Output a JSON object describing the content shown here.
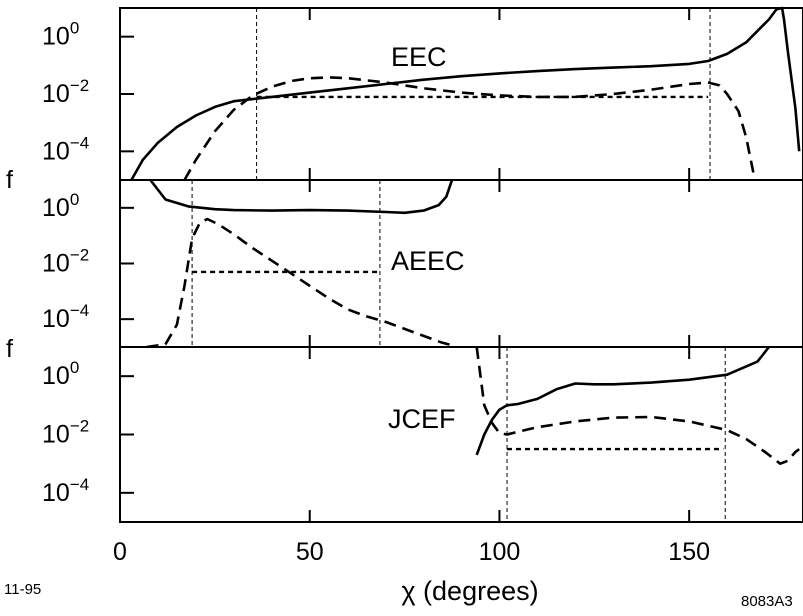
{
  "chart_data": {
    "type": "line",
    "x_axis": {
      "label": "χ (degrees)",
      "range": [
        0,
        180
      ],
      "ticks": [
        0,
        50,
        100,
        150
      ]
    },
    "y_axis": {
      "label": "f",
      "scale": "log",
      "range_log10": [
        -5,
        1
      ],
      "tick_exponents": [
        0,
        -2,
        -4
      ],
      "tick_base": "10"
    },
    "notes": {
      "left": "11-95",
      "right": "8083A3"
    },
    "panels": [
      {
        "name": "EEC",
        "label": "EEC",
        "series": [
          {
            "style": "solid",
            "x": [
              3,
              6,
              10,
              15,
              20,
              25,
              30,
              40,
              50,
              60,
              70,
              80,
              90,
              100,
              110,
              120,
              130,
              140,
              150,
              155,
              160,
              165,
              168,
              171,
              173,
              174.5,
              175,
              176,
              178,
              179
            ],
            "log10": [
              -5,
              -4.3,
              -3.7,
              -3.15,
              -2.75,
              -2.45,
              -2.25,
              -2.1,
              -1.95,
              -1.8,
              -1.65,
              -1.5,
              -1.38,
              -1.28,
              -1.2,
              -1.13,
              -1.08,
              -1.03,
              -0.95,
              -0.85,
              -0.6,
              -0.2,
              0.2,
              0.6,
              0.95,
              1,
              0.6,
              -0.5,
              -2.5,
              -4
            ]
          },
          {
            "style": "dashed",
            "x": [
              17,
              20,
              25,
              30,
              35,
              40,
              45,
              50,
              55,
              60,
              70,
              80,
              90,
              100,
              110,
              120,
              130,
              140,
              150,
              155,
              158,
              160,
              163,
              165,
              167
            ],
            "log10": [
              -5,
              -4.3,
              -3.3,
              -2.55,
              -2.05,
              -1.75,
              -1.55,
              -1.45,
              -1.42,
              -1.45,
              -1.6,
              -1.8,
              -1.95,
              -2.05,
              -2.1,
              -2.1,
              -2.0,
              -1.85,
              -1.65,
              -1.6,
              -1.7,
              -2.0,
              -2.6,
              -3.5,
              -4.8
            ]
          },
          {
            "style": "dotted",
            "x": [
              36,
              155
            ],
            "log10": [
              -2.1,
              -2.1
            ]
          }
        ],
        "vlines": [
          36,
          155.5
        ]
      },
      {
        "name": "AEEC",
        "label": "AEEC",
        "series": [
          {
            "style": "solid",
            "x": [
              8,
              12,
              18,
              25,
              30,
              40,
              50,
              60,
              70,
              75,
              80,
              84,
              86,
              87,
              87.5
            ],
            "log10": [
              1,
              0.3,
              0.05,
              -0.05,
              -0.08,
              -0.1,
              -0.08,
              -0.1,
              -0.15,
              -0.18,
              -0.1,
              0.1,
              0.4,
              0.8,
              1
            ]
          },
          {
            "style": "dashed",
            "x": [
              7,
              12,
              15,
              17,
              19,
              21,
              23,
              26,
              30,
              35,
              40,
              45,
              50,
              55,
              60,
              65,
              70,
              75,
              80,
              85,
              87
            ],
            "log10": [
              -5,
              -4.9,
              -4.2,
              -2.8,
              -1.1,
              -0.55,
              -0.4,
              -0.6,
              -0.95,
              -1.45,
              -1.9,
              -2.35,
              -2.8,
              -3.25,
              -3.65,
              -3.9,
              -4.1,
              -4.35,
              -4.6,
              -4.85,
              -4.92
            ]
          },
          {
            "style": "dotted",
            "x": [
              19,
              68
            ],
            "log10": [
              -2.3,
              -2.3
            ]
          }
        ],
        "vlines": [
          19,
          68.5
        ]
      },
      {
        "name": "JCEF",
        "label": "JCEF",
        "series": [
          {
            "style": "solid",
            "x": [
              94,
              96,
              98,
              100,
              102,
              105,
              110,
              115,
              120,
              125,
              130,
              140,
              150,
              160,
              168,
              171
            ],
            "log10": [
              -2.7,
              -2.0,
              -1.5,
              -1.15,
              -1.0,
              -0.95,
              -0.78,
              -0.45,
              -0.25,
              -0.28,
              -0.28,
              -0.22,
              -0.12,
              0.05,
              0.5,
              1
            ]
          },
          {
            "style": "dashed",
            "x": [
              94,
              95,
              96,
              98,
              100,
              102,
              105,
              110,
              120,
              130,
              140,
              150,
              160,
              165,
              170,
              174,
              176,
              178,
              179
            ],
            "log10": [
              1,
              0,
              -1.0,
              -1.6,
              -1.95,
              -2.0,
              -1.9,
              -1.75,
              -1.55,
              -1.42,
              -1.4,
              -1.55,
              -1.85,
              -2.15,
              -2.6,
              -3.0,
              -2.9,
              -2.6,
              -2.5
            ]
          },
          {
            "style": "dotted",
            "x": [
              102,
              159
            ],
            "log10": [
              -2.5,
              -2.5
            ]
          }
        ],
        "vlines": [
          102,
          159.5
        ]
      }
    ]
  }
}
